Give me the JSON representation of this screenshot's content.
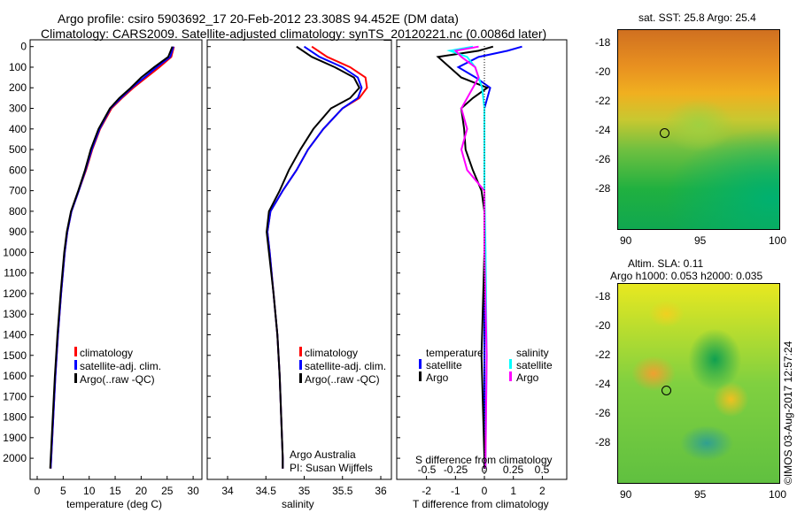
{
  "title": {
    "line1": "Argo profile: csiro 5903692_17 20-Feb-2012 23.308S 94.452E (DM data)",
    "line2": "Climatology: CARS2009. Satellite-adjusted climatology: synTS_20120221.nc (0.0086d later)"
  },
  "colors": {
    "climatology": "#ff0000",
    "satellite": "#0000ff",
    "argo": "#000000",
    "sal_satellite": "#00ffff",
    "sal_argo": "#ff00ff"
  },
  "chart_data": [
    {
      "type": "line",
      "xlabel": "temperature (deg C)",
      "ylabel": "",
      "ylim": [
        2050,
        0
      ],
      "xlim": [
        -2,
        31
      ],
      "xticks": [
        0,
        5,
        10,
        15,
        20,
        25,
        30
      ],
      "yticks": [
        0,
        100,
        200,
        300,
        400,
        500,
        600,
        700,
        800,
        900,
        1000,
        1100,
        1200,
        1300,
        1400,
        1500,
        1600,
        1700,
        1800,
        1900,
        2000
      ],
      "legend": [
        "climatology",
        "satellite-adj. clim.",
        "Argo(..raw -QC)"
      ],
      "series": [
        {
          "name": "climatology",
          "color": "#ff0000",
          "depth": [
            0,
            50,
            100,
            150,
            200,
            250,
            300,
            400,
            500,
            600,
            700,
            800,
            900,
            1000,
            1200,
            1400,
            1600,
            1800,
            2000,
            2050
          ],
          "values": [
            26.3,
            25.8,
            23.5,
            21,
            18.5,
            16.3,
            14.3,
            12.1,
            10.6,
            9.4,
            8,
            6.6,
            5.8,
            5.3,
            4.6,
            4,
            3.5,
            3.1,
            2.7,
            2.6
          ]
        },
        {
          "name": "satellite-adj. clim.",
          "color": "#0000ff",
          "depth": [
            0,
            50,
            100,
            150,
            200,
            250,
            300,
            400,
            500,
            600,
            700,
            800,
            900,
            1000,
            1200,
            1400,
            1600,
            1800,
            2000,
            2050
          ],
          "values": [
            26.2,
            25.6,
            23,
            20.6,
            18.2,
            16.1,
            14.1,
            12,
            10.5,
            9.3,
            8,
            6.6,
            5.8,
            5.3,
            4.6,
            4,
            3.5,
            3.1,
            2.7,
            2.6
          ]
        },
        {
          "name": "Argo(..raw -QC)",
          "color": "#000000",
          "depth": [
            0,
            50,
            100,
            150,
            200,
            250,
            300,
            400,
            500,
            600,
            700,
            800,
            900,
            1000,
            1200,
            1400,
            1600,
            1800,
            2000,
            2050
          ],
          "values": [
            26,
            25.2,
            22.5,
            20,
            18,
            15.8,
            14,
            11.8,
            10.3,
            9.2,
            7.9,
            6.5,
            5.7,
            5.2,
            4.5,
            3.9,
            3.4,
            3,
            2.6,
            2.5
          ]
        }
      ]
    },
    {
      "type": "line",
      "xlabel": "salinity",
      "ylim": [
        2050,
        0
      ],
      "xlim": [
        33.8,
        36.1
      ],
      "xticks": [
        34,
        34.5,
        35,
        35.5,
        36
      ],
      "legend": [
        "climatology",
        "satellite-adj. clim.",
        "Argo(..raw -QC)"
      ],
      "annotation": [
        "Argo Australia",
        "PI: Susan Wijffels"
      ],
      "series": [
        {
          "name": "climatology",
          "color": "#ff0000",
          "depth": [
            0,
            50,
            100,
            150,
            200,
            250,
            300,
            400,
            500,
            600,
            700,
            800,
            900,
            1000,
            1200,
            1400,
            1600,
            1800,
            2000,
            2050
          ],
          "values": [
            35.1,
            35.3,
            35.6,
            35.8,
            35.82,
            35.72,
            35.5,
            35.25,
            35.05,
            34.9,
            34.72,
            34.56,
            34.52,
            34.55,
            34.6,
            34.65,
            34.68,
            34.7,
            34.72,
            34.72
          ]
        },
        {
          "name": "satellite-adj. clim.",
          "color": "#0000ff",
          "depth": [
            0,
            50,
            100,
            150,
            200,
            250,
            300,
            400,
            500,
            600,
            700,
            800,
            900,
            1000,
            1200,
            1400,
            1600,
            1800,
            2000,
            2050
          ],
          "values": [
            35,
            35.2,
            35.5,
            35.7,
            35.75,
            35.7,
            35.5,
            35.25,
            35.05,
            34.9,
            34.72,
            34.56,
            34.52,
            34.55,
            34.6,
            34.65,
            34.68,
            34.7,
            34.72,
            34.72
          ]
        },
        {
          "name": "Argo(..raw -QC)",
          "color": "#000000",
          "depth": [
            0,
            50,
            100,
            150,
            200,
            250,
            300,
            400,
            500,
            600,
            700,
            800,
            900,
            1000,
            1200,
            1400,
            1600,
            1800,
            2000,
            2050
          ],
          "values": [
            34.9,
            35.1,
            35.4,
            35.65,
            35.72,
            35.6,
            35.35,
            35.12,
            34.95,
            34.8,
            34.68,
            34.54,
            34.51,
            34.54,
            34.6,
            34.65,
            34.68,
            34.7,
            34.72,
            34.72
          ]
        }
      ]
    },
    {
      "type": "line",
      "xlabel": "T difference from climatology",
      "x2label": "S difference from climatology",
      "ylim": [
        2050,
        0
      ],
      "xlim": [
        -3,
        3
      ],
      "xticks": [
        -2,
        -1,
        0,
        1,
        2
      ],
      "x2ticks": [
        -0.5,
        -0.25,
        0,
        0.25,
        0.5
      ],
      "legend_titles": [
        "temperature",
        "salinity"
      ],
      "legend": [
        "satellite",
        "Argo",
        "satellite",
        "Argo"
      ],
      "series": [
        {
          "name": "T satellite",
          "color": "#0000ff",
          "depth": [
            0,
            20,
            50,
            100,
            150,
            200,
            300,
            500,
            700,
            1000,
            1500,
            2000,
            2050
          ],
          "values": [
            1.3,
            0.8,
            -0.2,
            -0.9,
            -0.3,
            0.2,
            0,
            0,
            0,
            0,
            0,
            0,
            0
          ]
        },
        {
          "name": "T Argo",
          "color": "#000000",
          "depth": [
            0,
            20,
            50,
            100,
            150,
            200,
            250,
            300,
            400,
            500,
            600,
            700,
            800,
            1000,
            1500,
            2000,
            2050
          ],
          "values": [
            0.3,
            -0.2,
            -1.6,
            -1.2,
            -0.8,
            0.1,
            -0.4,
            -0.8,
            -0.7,
            -0.65,
            -0.4,
            -0.1,
            0,
            0,
            -0.1,
            0,
            0
          ]
        },
        {
          "name": "S satellite",
          "color": "#00ffff",
          "depth": [
            0,
            20,
            50,
            100,
            150,
            200,
            300,
            500,
            700,
            1000,
            1500,
            2000,
            2050
          ],
          "values": [
            -0.1,
            -0.3,
            -0.15,
            -0.08,
            -0.05,
            -0.02,
            0,
            0,
            0,
            0.01,
            0.02,
            0.01,
            0.01
          ]
        },
        {
          "name": "S Argo",
          "color": "#ff00ff",
          "depth": [
            0,
            20,
            50,
            100,
            150,
            200,
            300,
            400,
            500,
            600,
            700,
            1000,
            1500,
            2000,
            2050
          ],
          "values": [
            -0.05,
            -0.25,
            -0.2,
            -0.08,
            -0.05,
            -0.1,
            -0.2,
            -0.15,
            -0.2,
            -0.15,
            0,
            0,
            0.02,
            0.01,
            0.01
          ]
        }
      ]
    }
  ],
  "maps": [
    {
      "title": "sat. SST: 25.8 Argo: 25.4",
      "xticks": [
        "90",
        "95",
        "100"
      ],
      "yticks": [
        "-18",
        "-20",
        "-22",
        "-24",
        "-26",
        "-28"
      ]
    },
    {
      "title1": "Altim. SLA: 0.11",
      "title2": "Argo h1000: 0.053 h2000: 0.035",
      "xticks": [
        "90",
        "95",
        "100"
      ],
      "yticks": [
        "-18",
        "-20",
        "-22",
        "-24",
        "-26",
        "-28"
      ]
    }
  ],
  "timestamp": "©IMOS 03-Aug-2017 12:57:24"
}
